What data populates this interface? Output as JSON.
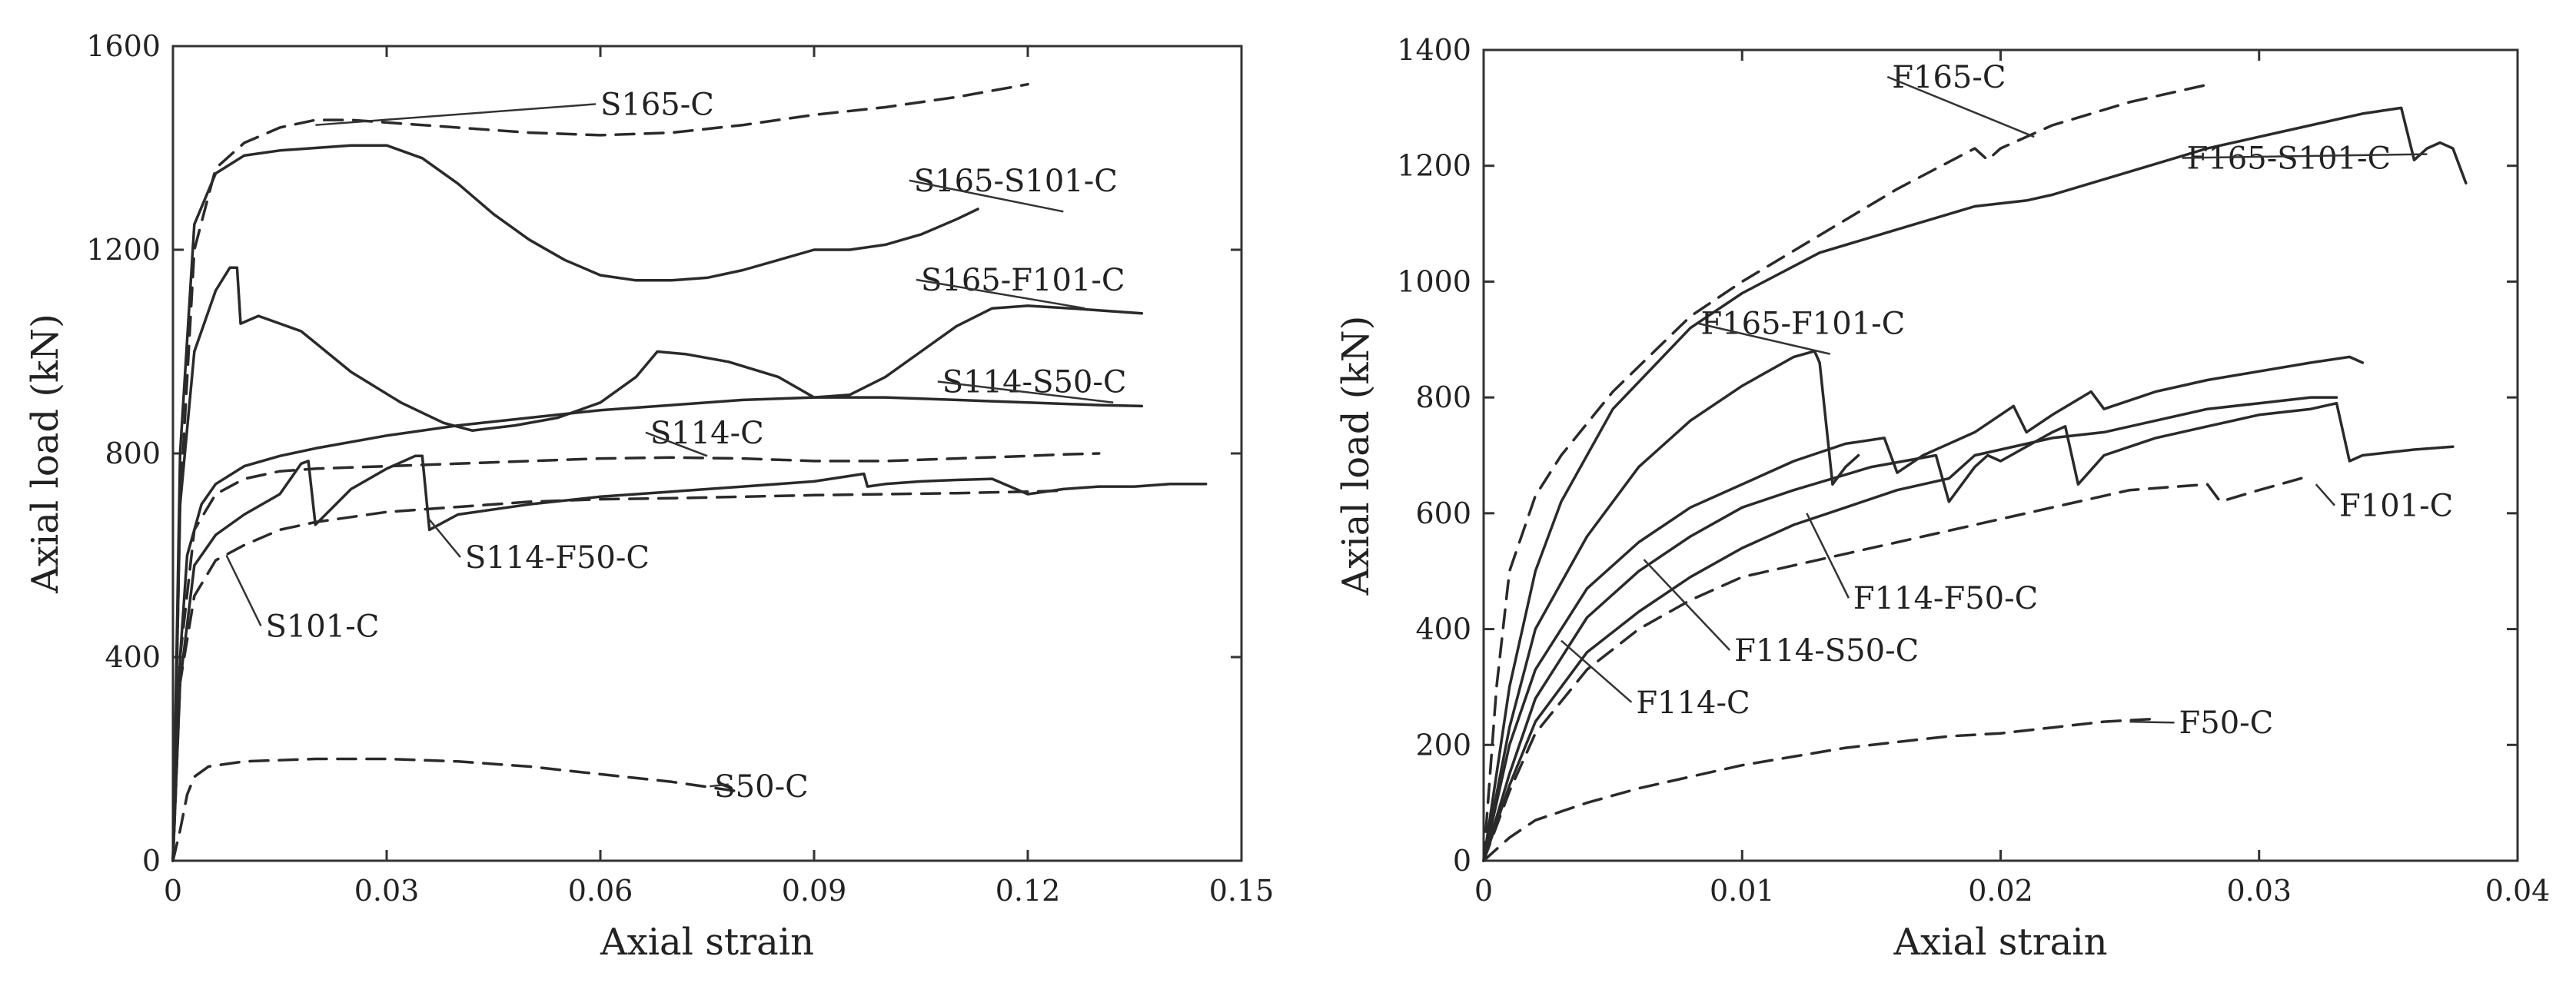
{
  "chart_data": [
    {
      "type": "line",
      "title": "",
      "xlabel": "Axial strain",
      "ylabel": "Axial load (kN)",
      "xlim": [
        0,
        0.15
      ],
      "ylim": [
        0,
        1600
      ],
      "xticks": [
        0,
        0.03,
        0.06,
        0.09,
        0.12,
        0.15
      ],
      "xtick_labels": [
        "0",
        "0.03",
        "0.06",
        "0.09",
        "0.12",
        "0.15"
      ],
      "yticks": [
        0,
        400,
        800,
        1200,
        1600
      ],
      "ytick_labels": [
        "0",
        "400",
        "800",
        "1200",
        "1600"
      ],
      "grid": false,
      "series": [
        {
          "name": "S165-C",
          "style": "dashed",
          "x": [
            0,
            0.001,
            0.003,
            0.006,
            0.01,
            0.015,
            0.02,
            0.025,
            0.03,
            0.04,
            0.05,
            0.06,
            0.07,
            0.08,
            0.09,
            0.1,
            0.11,
            0.12
          ],
          "y": [
            0,
            700,
            1200,
            1360,
            1410,
            1440,
            1455,
            1455,
            1450,
            1440,
            1430,
            1425,
            1430,
            1445,
            1465,
            1480,
            1500,
            1525
          ]
        },
        {
          "name": "S165-S101-C",
          "style": "solid",
          "x": [
            0,
            0.001,
            0.003,
            0.006,
            0.01,
            0.015,
            0.02,
            0.025,
            0.03,
            0.035,
            0.04,
            0.045,
            0.05,
            0.055,
            0.06,
            0.065,
            0.07,
            0.075,
            0.08,
            0.085,
            0.09,
            0.095,
            0.1,
            0.105,
            0.11,
            0.113
          ],
          "y": [
            0,
            800,
            1250,
            1350,
            1385,
            1395,
            1400,
            1405,
            1405,
            1380,
            1330,
            1270,
            1220,
            1180,
            1150,
            1140,
            1140,
            1145,
            1160,
            1180,
            1200,
            1200,
            1210,
            1230,
            1260,
            1280
          ]
        },
        {
          "name": "S165-F101-C",
          "style": "solid",
          "x": [
            0,
            0.001,
            0.003,
            0.006,
            0.008,
            0.009,
            0.0095,
            0.012,
            0.018,
            0.025,
            0.032,
            0.038,
            0.042,
            0.048,
            0.054,
            0.06,
            0.065,
            0.068,
            0.072,
            0.078,
            0.085,
            0.09,
            0.095,
            0.1,
            0.105,
            0.11,
            0.115,
            0.12,
            0.126,
            0.131,
            0.136
          ],
          "y": [
            0,
            700,
            1000,
            1120,
            1165,
            1165,
            1055,
            1070,
            1040,
            960,
            900,
            860,
            845,
            855,
            870,
            900,
            950,
            1000,
            995,
            980,
            950,
            910,
            915,
            950,
            1000,
            1050,
            1085,
            1090,
            1085,
            1080,
            1075
          ]
        },
        {
          "name": "S114-S50-C",
          "style": "solid",
          "x": [
            0,
            0.001,
            0.002,
            0.004,
            0.006,
            0.01,
            0.015,
            0.02,
            0.03,
            0.04,
            0.05,
            0.06,
            0.07,
            0.08,
            0.09,
            0.1,
            0.11,
            0.12,
            0.13,
            0.136
          ],
          "y": [
            0,
            400,
            600,
            700,
            740,
            775,
            795,
            810,
            835,
            855,
            870,
            885,
            895,
            905,
            910,
            910,
            905,
            900,
            895,
            893
          ]
        },
        {
          "name": "S114-C",
          "style": "dashed",
          "x": [
            0,
            0.001,
            0.003,
            0.006,
            0.01,
            0.015,
            0.02,
            0.03,
            0.04,
            0.05,
            0.06,
            0.07,
            0.08,
            0.09,
            0.1,
            0.11,
            0.12,
            0.125,
            0.13
          ],
          "y": [
            0,
            400,
            650,
            720,
            750,
            765,
            770,
            775,
            780,
            785,
            790,
            792,
            790,
            785,
            785,
            790,
            795,
            798,
            800
          ]
        },
        {
          "name": "S114-F50-C",
          "style": "solid",
          "x": [
            0,
            0.001,
            0.003,
            0.006,
            0.01,
            0.015,
            0.018,
            0.019,
            0.02,
            0.025,
            0.03,
            0.034,
            0.035,
            0.036,
            0.04,
            0.05,
            0.06,
            0.07,
            0.08,
            0.09,
            0.097,
            0.0975,
            0.1,
            0.105,
            0.11,
            0.115,
            0.12,
            0.125,
            0.13,
            0.135,
            0.14,
            0.145
          ],
          "y": [
            0,
            350,
            580,
            640,
            680,
            720,
            780,
            785,
            660,
            730,
            770,
            795,
            795,
            650,
            680,
            700,
            715,
            725,
            735,
            745,
            760,
            735,
            740,
            745,
            748,
            750,
            720,
            730,
            735,
            735,
            740,
            740
          ]
        },
        {
          "name": "S101-C",
          "style": "dashed",
          "x": [
            0,
            0.001,
            0.003,
            0.006,
            0.01,
            0.015,
            0.02,
            0.03,
            0.04,
            0.05,
            0.06,
            0.07,
            0.08,
            0.09,
            0.1,
            0.11,
            0.12,
            0.125
          ],
          "y": [
            0,
            350,
            520,
            590,
            620,
            650,
            665,
            685,
            695,
            705,
            710,
            712,
            715,
            718,
            720,
            722,
            725,
            727
          ]
        },
        {
          "name": "S50-C",
          "style": "dashed",
          "x": [
            0,
            0.001,
            0.002,
            0.003,
            0.005,
            0.01,
            0.02,
            0.03,
            0.04,
            0.05,
            0.06,
            0.07,
            0.08
          ],
          "y": [
            0,
            60,
            130,
            165,
            185,
            195,
            200,
            200,
            195,
            185,
            170,
            155,
            135
          ]
        }
      ],
      "labels": [
        {
          "text": "S165-C",
          "series": "S165-C",
          "at": [
            0.06,
            1465
          ]
        },
        {
          "text": "S165-S101-C",
          "series": "S165-S101-C",
          "at": [
            0.104,
            1315
          ]
        },
        {
          "text": "S165-F101-C",
          "series": "S165-F101-C",
          "at": [
            0.105,
            1120
          ]
        },
        {
          "text": "S114-S50-C",
          "series": "S114-S50-C",
          "at": [
            0.108,
            920
          ]
        },
        {
          "text": "S114-C",
          "series": "S114-C",
          "at": [
            0.067,
            820
          ]
        },
        {
          "text": "S114-F50-C",
          "series": "S114-F50-C",
          "at": [
            0.041,
            575
          ]
        },
        {
          "text": "S101-C",
          "series": "S101-C",
          "at": [
            0.013,
            440
          ]
        },
        {
          "text": "S50-C",
          "series": "S50-C",
          "at": [
            0.076,
            125
          ]
        }
      ]
    },
    {
      "type": "line",
      "title": "",
      "xlabel": "Axial strain",
      "ylabel": "Axial load (kN)",
      "xlim": [
        0,
        0.04
      ],
      "ylim": [
        0,
        1400
      ],
      "xticks": [
        0,
        0.01,
        0.02,
        0.03,
        0.04
      ],
      "xtick_labels": [
        "0",
        "0.01",
        "0.02",
        "0.03",
        "0.04"
      ],
      "yticks": [
        0,
        200,
        400,
        600,
        800,
        1000,
        1200,
        1400
      ],
      "ytick_labels": [
        "0",
        "200",
        "400",
        "600",
        "800",
        "1000",
        "1200",
        "1400"
      ],
      "grid": false,
      "series": [
        {
          "name": "F165-C",
          "style": "dashed",
          "x": [
            0,
            0.0005,
            0.001,
            0.002,
            0.003,
            0.005,
            0.008,
            0.01,
            0.013,
            0.016,
            0.019,
            0.0195,
            0.02,
            0.022,
            0.025,
            0.028
          ],
          "y": [
            0,
            300,
            500,
            630,
            700,
            810,
            940,
            1000,
            1080,
            1160,
            1230,
            1210,
            1230,
            1270,
            1310,
            1340
          ]
        },
        {
          "name": "F165-S101-C",
          "style": "solid",
          "x": [
            0,
            0.001,
            0.002,
            0.003,
            0.005,
            0.008,
            0.01,
            0.013,
            0.016,
            0.019,
            0.021,
            0.022,
            0.025,
            0.028,
            0.031,
            0.034,
            0.0355,
            0.036,
            0.0365,
            0.037,
            0.0375,
            0.038
          ],
          "y": [
            0,
            300,
            500,
            620,
            780,
            920,
            980,
            1050,
            1090,
            1130,
            1140,
            1150,
            1190,
            1230,
            1260,
            1290,
            1300,
            1210,
            1230,
            1240,
            1230,
            1170
          ]
        },
        {
          "name": "F165-F101-C",
          "style": "solid",
          "x": [
            0,
            0.001,
            0.002,
            0.004,
            0.006,
            0.008,
            0.01,
            0.012,
            0.0128,
            0.013,
            0.0135,
            0.014,
            0.0145
          ],
          "y": [
            0,
            230,
            400,
            560,
            680,
            760,
            820,
            870,
            880,
            860,
            650,
            680,
            700
          ]
        },
        {
          "name": "F114-S50-C",
          "style": "solid",
          "x": [
            0,
            0.001,
            0.002,
            0.004,
            0.006,
            0.008,
            0.01,
            0.012,
            0.014,
            0.0155,
            0.016,
            0.017,
            0.019,
            0.0205,
            0.021,
            0.022,
            0.0235,
            0.024,
            0.026,
            0.028,
            0.03,
            0.032,
            0.0335,
            0.034
          ],
          "y": [
            0,
            200,
            330,
            470,
            550,
            610,
            650,
            690,
            720,
            730,
            670,
            700,
            740,
            785,
            740,
            770,
            810,
            780,
            810,
            830,
            845,
            860,
            870,
            860
          ]
        },
        {
          "name": "F114-C",
          "style": "solid",
          "x": [
            0,
            0.001,
            0.002,
            0.004,
            0.006,
            0.008,
            0.01,
            0.012,
            0.015,
            0.0175,
            0.018,
            0.019,
            0.0195,
            0.02,
            0.022,
            0.0225,
            0.023,
            0.024,
            0.026,
            0.028,
            0.03,
            0.032,
            0.033,
            0.0335,
            0.034,
            0.036,
            0.0375
          ],
          "y": [
            0,
            150,
            280,
            420,
            500,
            560,
            610,
            640,
            680,
            700,
            620,
            680,
            700,
            690,
            740,
            750,
            650,
            700,
            730,
            750,
            770,
            780,
            790,
            690,
            700,
            710,
            715
          ]
        },
        {
          "name": "F114-F50-C",
          "style": "solid",
          "x": [
            0,
            0.001,
            0.002,
            0.004,
            0.006,
            0.008,
            0.01,
            0.012,
            0.014,
            0.016,
            0.018,
            0.019,
            0.02,
            0.022,
            0.024,
            0.026,
            0.028,
            0.03,
            0.032,
            0.033
          ],
          "y": [
            0,
            130,
            240,
            360,
            430,
            490,
            540,
            580,
            610,
            640,
            660,
            700,
            710,
            730,
            740,
            760,
            780,
            790,
            800,
            800
          ]
        },
        {
          "name": "F101-C",
          "style": "dashed",
          "x": [
            0,
            0.001,
            0.002,
            0.004,
            0.006,
            0.008,
            0.01,
            0.012,
            0.015,
            0.018,
            0.02,
            0.022,
            0.025,
            0.028,
            0.0285,
            0.03,
            0.032
          ],
          "y": [
            0,
            120,
            220,
            330,
            400,
            450,
            490,
            510,
            540,
            570,
            590,
            610,
            640,
            650,
            620,
            640,
            665
          ]
        },
        {
          "name": "F50-C",
          "style": "dashed",
          "x": [
            0,
            0.001,
            0.002,
            0.004,
            0.006,
            0.008,
            0.01,
            0.012,
            0.014,
            0.016,
            0.018,
            0.02,
            0.022,
            0.024,
            0.026
          ],
          "y": [
            0,
            40,
            70,
            100,
            125,
            145,
            165,
            180,
            195,
            205,
            215,
            220,
            230,
            240,
            245
          ]
        }
      ],
      "labels": [
        {
          "text": "F165-C",
          "series": "F165-C",
          "at": [
            0.0158,
            1335
          ]
        },
        {
          "text": "F165-S101-C",
          "series": "F165-S101-C",
          "at": [
            0.0272,
            1195
          ]
        },
        {
          "text": "F165-F101-C",
          "series": "F165-F101-C",
          "at": [
            0.0084,
            910
          ]
        },
        {
          "text": "F101-C",
          "series": "F101-C",
          "at": [
            0.0331,
            595
          ]
        },
        {
          "text": "F114-F50-C",
          "series": "F114-F50-C",
          "at": [
            0.0143,
            435
          ]
        },
        {
          "text": "F114-S50-C",
          "series": "F114-S50-C",
          "at": [
            0.0097,
            345
          ]
        },
        {
          "text": "F114-C",
          "series": "F114-C",
          "at": [
            0.0059,
            255
          ]
        },
        {
          "text": "F50-C",
          "series": "F50-C",
          "at": [
            0.0269,
            220
          ]
        }
      ]
    }
  ]
}
